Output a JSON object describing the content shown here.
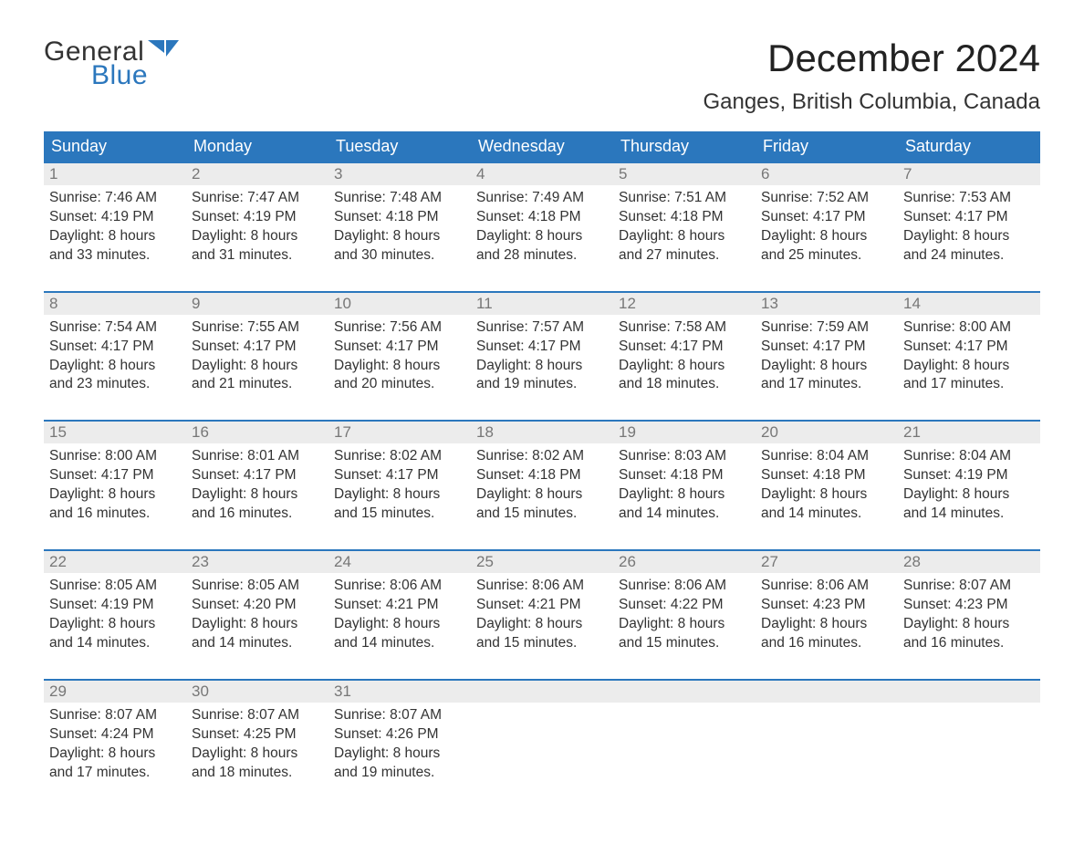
{
  "brand": {
    "word1": "General",
    "word2": "Blue",
    "icon_color": "#2b77bd",
    "text_color_1": "#333333",
    "text_color_2": "#2b77bd"
  },
  "title": {
    "month": "December 2024",
    "location": "Ganges, British Columbia, Canada"
  },
  "colors": {
    "header_bg": "#2b77bd",
    "header_text": "#ffffff",
    "week_border": "#2b77bd",
    "daynum_bg": "#ececec",
    "daynum_text": "#777777",
    "body_text": "#333333",
    "page_bg": "#ffffff"
  },
  "typography": {
    "month_fontsize": 42,
    "location_fontsize": 24,
    "header_fontsize": 18,
    "daynum_fontsize": 17,
    "cell_fontsize": 15.5,
    "font_family": "Arial"
  },
  "layout": {
    "columns": 7,
    "rows": 5
  },
  "day_headers": [
    "Sunday",
    "Monday",
    "Tuesday",
    "Wednesday",
    "Thursday",
    "Friday",
    "Saturday"
  ],
  "weeks": [
    {
      "days": [
        {
          "num": "1",
          "sunrise": "Sunrise: 7:46 AM",
          "sunset": "Sunset: 4:19 PM",
          "daylight": "Daylight: 8 hours and 33 minutes."
        },
        {
          "num": "2",
          "sunrise": "Sunrise: 7:47 AM",
          "sunset": "Sunset: 4:19 PM",
          "daylight": "Daylight: 8 hours and 31 minutes."
        },
        {
          "num": "3",
          "sunrise": "Sunrise: 7:48 AM",
          "sunset": "Sunset: 4:18 PM",
          "daylight": "Daylight: 8 hours and 30 minutes."
        },
        {
          "num": "4",
          "sunrise": "Sunrise: 7:49 AM",
          "sunset": "Sunset: 4:18 PM",
          "daylight": "Daylight: 8 hours and 28 minutes."
        },
        {
          "num": "5",
          "sunrise": "Sunrise: 7:51 AM",
          "sunset": "Sunset: 4:18 PM",
          "daylight": "Daylight: 8 hours and 27 minutes."
        },
        {
          "num": "6",
          "sunrise": "Sunrise: 7:52 AM",
          "sunset": "Sunset: 4:17 PM",
          "daylight": "Daylight: 8 hours and 25 minutes."
        },
        {
          "num": "7",
          "sunrise": "Sunrise: 7:53 AM",
          "sunset": "Sunset: 4:17 PM",
          "daylight": "Daylight: 8 hours and 24 minutes."
        }
      ]
    },
    {
      "days": [
        {
          "num": "8",
          "sunrise": "Sunrise: 7:54 AM",
          "sunset": "Sunset: 4:17 PM",
          "daylight": "Daylight: 8 hours and 23 minutes."
        },
        {
          "num": "9",
          "sunrise": "Sunrise: 7:55 AM",
          "sunset": "Sunset: 4:17 PM",
          "daylight": "Daylight: 8 hours and 21 minutes."
        },
        {
          "num": "10",
          "sunrise": "Sunrise: 7:56 AM",
          "sunset": "Sunset: 4:17 PM",
          "daylight": "Daylight: 8 hours and 20 minutes."
        },
        {
          "num": "11",
          "sunrise": "Sunrise: 7:57 AM",
          "sunset": "Sunset: 4:17 PM",
          "daylight": "Daylight: 8 hours and 19 minutes."
        },
        {
          "num": "12",
          "sunrise": "Sunrise: 7:58 AM",
          "sunset": "Sunset: 4:17 PM",
          "daylight": "Daylight: 8 hours and 18 minutes."
        },
        {
          "num": "13",
          "sunrise": "Sunrise: 7:59 AM",
          "sunset": "Sunset: 4:17 PM",
          "daylight": "Daylight: 8 hours and 17 minutes."
        },
        {
          "num": "14",
          "sunrise": "Sunrise: 8:00 AM",
          "sunset": "Sunset: 4:17 PM",
          "daylight": "Daylight: 8 hours and 17 minutes."
        }
      ]
    },
    {
      "days": [
        {
          "num": "15",
          "sunrise": "Sunrise: 8:00 AM",
          "sunset": "Sunset: 4:17 PM",
          "daylight": "Daylight: 8 hours and 16 minutes."
        },
        {
          "num": "16",
          "sunrise": "Sunrise: 8:01 AM",
          "sunset": "Sunset: 4:17 PM",
          "daylight": "Daylight: 8 hours and 16 minutes."
        },
        {
          "num": "17",
          "sunrise": "Sunrise: 8:02 AM",
          "sunset": "Sunset: 4:17 PM",
          "daylight": "Daylight: 8 hours and 15 minutes."
        },
        {
          "num": "18",
          "sunrise": "Sunrise: 8:02 AM",
          "sunset": "Sunset: 4:18 PM",
          "daylight": "Daylight: 8 hours and 15 minutes."
        },
        {
          "num": "19",
          "sunrise": "Sunrise: 8:03 AM",
          "sunset": "Sunset: 4:18 PM",
          "daylight": "Daylight: 8 hours and 14 minutes."
        },
        {
          "num": "20",
          "sunrise": "Sunrise: 8:04 AM",
          "sunset": "Sunset: 4:18 PM",
          "daylight": "Daylight: 8 hours and 14 minutes."
        },
        {
          "num": "21",
          "sunrise": "Sunrise: 8:04 AM",
          "sunset": "Sunset: 4:19 PM",
          "daylight": "Daylight: 8 hours and 14 minutes."
        }
      ]
    },
    {
      "days": [
        {
          "num": "22",
          "sunrise": "Sunrise: 8:05 AM",
          "sunset": "Sunset: 4:19 PM",
          "daylight": "Daylight: 8 hours and 14 minutes."
        },
        {
          "num": "23",
          "sunrise": "Sunrise: 8:05 AM",
          "sunset": "Sunset: 4:20 PM",
          "daylight": "Daylight: 8 hours and 14 minutes."
        },
        {
          "num": "24",
          "sunrise": "Sunrise: 8:06 AM",
          "sunset": "Sunset: 4:21 PM",
          "daylight": "Daylight: 8 hours and 14 minutes."
        },
        {
          "num": "25",
          "sunrise": "Sunrise: 8:06 AM",
          "sunset": "Sunset: 4:21 PM",
          "daylight": "Daylight: 8 hours and 15 minutes."
        },
        {
          "num": "26",
          "sunrise": "Sunrise: 8:06 AM",
          "sunset": "Sunset: 4:22 PM",
          "daylight": "Daylight: 8 hours and 15 minutes."
        },
        {
          "num": "27",
          "sunrise": "Sunrise: 8:06 AM",
          "sunset": "Sunset: 4:23 PM",
          "daylight": "Daylight: 8 hours and 16 minutes."
        },
        {
          "num": "28",
          "sunrise": "Sunrise: 8:07 AM",
          "sunset": "Sunset: 4:23 PM",
          "daylight": "Daylight: 8 hours and 16 minutes."
        }
      ]
    },
    {
      "days": [
        {
          "num": "29",
          "sunrise": "Sunrise: 8:07 AM",
          "sunset": "Sunset: 4:24 PM",
          "daylight": "Daylight: 8 hours and 17 minutes."
        },
        {
          "num": "30",
          "sunrise": "Sunrise: 8:07 AM",
          "sunset": "Sunset: 4:25 PM",
          "daylight": "Daylight: 8 hours and 18 minutes."
        },
        {
          "num": "31",
          "sunrise": "Sunrise: 8:07 AM",
          "sunset": "Sunset: 4:26 PM",
          "daylight": "Daylight: 8 hours and 19 minutes."
        },
        {
          "num": "",
          "sunrise": "",
          "sunset": "",
          "daylight": ""
        },
        {
          "num": "",
          "sunrise": "",
          "sunset": "",
          "daylight": ""
        },
        {
          "num": "",
          "sunrise": "",
          "sunset": "",
          "daylight": ""
        },
        {
          "num": "",
          "sunrise": "",
          "sunset": "",
          "daylight": ""
        }
      ]
    }
  ]
}
